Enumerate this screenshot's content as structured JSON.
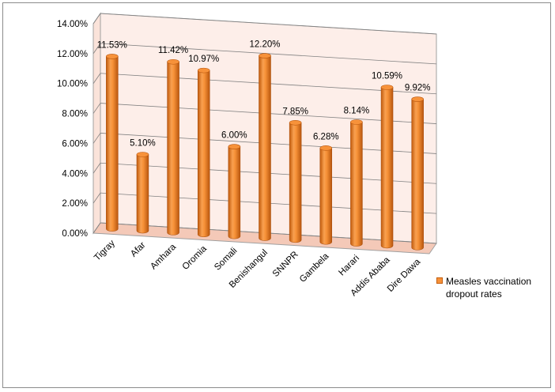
{
  "chart_data": {
    "type": "bar",
    "style": "3d-cylinder",
    "title": "",
    "xlabel": "",
    "ylabel": "",
    "categories": [
      "Tigray",
      "Afar",
      "Amhara",
      "Oromia",
      "Somali",
      "Benishangul",
      "SNNPR",
      "Gambela",
      "Harari",
      "Addis Ababa",
      "Dire Dawa"
    ],
    "series": [
      {
        "name": "Measles vaccination dropout rates",
        "values": [
          11.53,
          5.1,
          11.42,
          10.97,
          6.0,
          12.2,
          7.85,
          6.28,
          8.14,
          10.59,
          9.92
        ],
        "labels": [
          "11.53%",
          "5.10%",
          "11.42%",
          "10.97%",
          "6.00%",
          "12.20%",
          "7.85%",
          "6.28%",
          "8.14%",
          "10.59%",
          "9.92%"
        ]
      }
    ],
    "ylim": [
      0,
      14
    ],
    "yticks": [
      "0.00%",
      "2.00%",
      "4.00%",
      "6.00%",
      "8.00%",
      "10.00%",
      "12.00%",
      "14.00%"
    ],
    "grid": true,
    "legend": "right",
    "colors": {
      "bar": "#f7923a",
      "bar_dark": "#c45f10",
      "wall": "#fdeee9",
      "floor": "#f4c9b8",
      "grid": "#808080"
    }
  }
}
